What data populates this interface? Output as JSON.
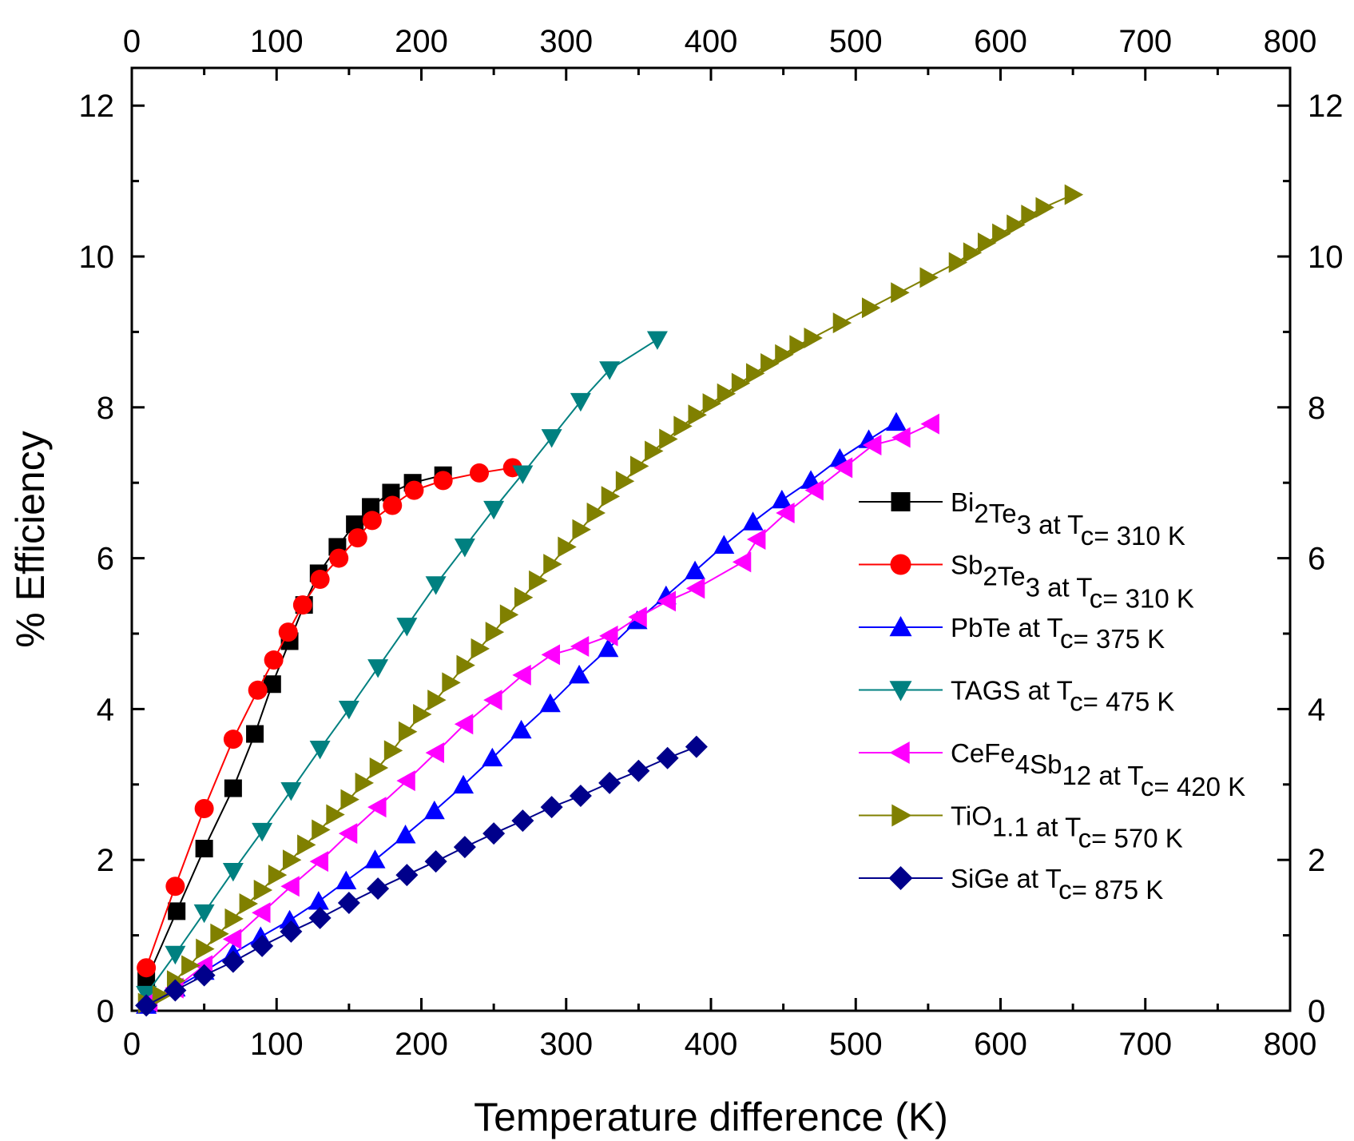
{
  "chart_data": {
    "type": "line",
    "title": "",
    "xlabel": "Temperature difference (K)",
    "ylabel": "% Efficiency",
    "xlim": [
      0,
      800
    ],
    "ylim": [
      0,
      12.5
    ],
    "x_ticks": [
      "0",
      "100",
      "200",
      "300",
      "400",
      "500",
      "600",
      "700",
      "800"
    ],
    "y_ticks": [
      "0",
      "2",
      "4",
      "6",
      "8",
      "10",
      "12"
    ],
    "grid": false,
    "legend_position": "right",
    "series": [
      {
        "name": "Bi2Te3 at Tc= 310 K",
        "legend": {
          "base": "Bi",
          "parts": [
            [
              "sub",
              "2"
            ],
            [
              "base",
              "Te"
            ],
            [
              "sub",
              "3"
            ],
            [
              "base",
              " at T"
            ],
            [
              "sub",
              "c"
            ],
            [
              "base",
              "= 310 K"
            ]
          ]
        },
        "color": "#000000",
        "marker": "square",
        "x": [
          10,
          31,
          50,
          70,
          85,
          97,
          109,
          119,
          129,
          142,
          154,
          165,
          179,
          194,
          215
        ],
        "y": [
          0.4,
          1.32,
          2.15,
          2.95,
          3.67,
          4.33,
          4.9,
          5.38,
          5.8,
          6.15,
          6.45,
          6.68,
          6.87,
          7.0,
          7.1
        ]
      },
      {
        "name": "Sb2Te3 at Tc= 310 K",
        "legend": {
          "base": "Sb",
          "parts": [
            [
              "sub",
              "2"
            ],
            [
              "base",
              "Te"
            ],
            [
              "sub",
              "3"
            ],
            [
              "base",
              " at T"
            ],
            [
              "sub",
              "c"
            ],
            [
              "base",
              "= 310 K"
            ]
          ]
        },
        "color": "#ff0000",
        "marker": "circle",
        "x": [
          10,
          30,
          50,
          70,
          87,
          98,
          108,
          118,
          130,
          143,
          156,
          166,
          180,
          195,
          215,
          240,
          263
        ],
        "y": [
          0.57,
          1.65,
          2.68,
          3.6,
          4.25,
          4.65,
          5.02,
          5.38,
          5.72,
          6.0,
          6.27,
          6.5,
          6.7,
          6.9,
          7.03,
          7.13,
          7.2
        ]
      },
      {
        "name": "PbTe at Tc= 375 K",
        "legend": {
          "base": "PbTe at T",
          "parts": [
            [
              "sub",
              "c"
            ],
            [
              "base",
              "= 375 K"
            ]
          ]
        },
        "color": "#0000ff",
        "marker": "triangle-up",
        "x": [
          10,
          30,
          50,
          70,
          89,
          109,
          129,
          148,
          168,
          189,
          209,
          229,
          249,
          269,
          289,
          309,
          329,
          349,
          369,
          389,
          409,
          429,
          449,
          469,
          489,
          509,
          528
        ],
        "y": [
          0.07,
          0.3,
          0.52,
          0.76,
          0.98,
          1.2,
          1.45,
          1.72,
          2.0,
          2.33,
          2.65,
          2.99,
          3.35,
          3.72,
          4.07,
          4.45,
          4.8,
          5.17,
          5.5,
          5.83,
          6.17,
          6.48,
          6.77,
          7.03,
          7.32,
          7.57,
          7.8
        ]
      },
      {
        "name": "TAGS at Tc= 475 K",
        "legend": {
          "base": "TAGS at T",
          "parts": [
            [
              "sub",
              "c"
            ],
            [
              "base",
              "= 475 K"
            ]
          ]
        },
        "color": "#008080",
        "marker": "triangle-down",
        "x": [
          10,
          30,
          50,
          70,
          90,
          110,
          130,
          150,
          170,
          190,
          210,
          230,
          250,
          270,
          290,
          310,
          330,
          363
        ],
        "y": [
          0.22,
          0.75,
          1.3,
          1.85,
          2.38,
          2.92,
          3.47,
          4.0,
          4.55,
          5.1,
          5.65,
          6.15,
          6.65,
          7.12,
          7.6,
          8.08,
          8.5,
          8.9
        ]
      },
      {
        "name": "CeFe4Sb12 at Tc= 420 K",
        "legend": {
          "base": "CeFe",
          "parts": [
            [
              "sub",
              "4"
            ],
            [
              "base",
              "Sb"
            ],
            [
              "sub",
              "12"
            ],
            [
              "base",
              " at T"
            ],
            [
              "sub",
              "c"
            ],
            [
              "base",
              "= 420 K"
            ]
          ]
        },
        "color": "#ff00ff",
        "marker": "triangle-left",
        "x": [
          12,
          30,
          50,
          70,
          90,
          110,
          130,
          150,
          170,
          190,
          210,
          230,
          250,
          270,
          290,
          310,
          330,
          350,
          370,
          390,
          422,
          432,
          452,
          472,
          492,
          512,
          532,
          552
        ],
        "y": [
          0.12,
          0.3,
          0.6,
          0.95,
          1.3,
          1.65,
          1.98,
          2.35,
          2.7,
          3.05,
          3.42,
          3.8,
          4.12,
          4.45,
          4.72,
          4.83,
          4.97,
          5.22,
          5.43,
          5.6,
          5.95,
          6.25,
          6.6,
          6.9,
          7.2,
          7.5,
          7.6,
          7.78
        ]
      },
      {
        "name": "TiO1.1 at Tc= 570 K",
        "legend": {
          "base": "TiO",
          "parts": [
            [
              "sub",
              "1.1"
            ],
            [
              "base",
              " at T"
            ],
            [
              "sub",
              "c"
            ],
            [
              "base",
              "= 570 K"
            ]
          ]
        },
        "color": "#808000",
        "marker": "triangle-right",
        "x": [
          10,
          20,
          30,
          40,
          50,
          60,
          70,
          80,
          90,
          100,
          110,
          120,
          130,
          140,
          150,
          160,
          170,
          180,
          190,
          200,
          210,
          220,
          230,
          240,
          250,
          260,
          270,
          280,
          290,
          300,
          310,
          320,
          330,
          340,
          350,
          360,
          370,
          380,
          390,
          400,
          410,
          420,
          430,
          440,
          450,
          460,
          470,
          490,
          510,
          530,
          550,
          570,
          580,
          590,
          600,
          610,
          620,
          630,
          650
        ],
        "y": [
          0.1,
          0.2,
          0.4,
          0.6,
          0.82,
          1.02,
          1.22,
          1.42,
          1.6,
          1.8,
          2.0,
          2.2,
          2.4,
          2.6,
          2.8,
          3.02,
          3.22,
          3.45,
          3.7,
          3.93,
          4.12,
          4.35,
          4.58,
          4.8,
          5.02,
          5.25,
          5.48,
          5.7,
          5.92,
          6.15,
          6.38,
          6.6,
          6.82,
          7.02,
          7.22,
          7.42,
          7.58,
          7.75,
          7.9,
          8.05,
          8.18,
          8.32,
          8.45,
          8.58,
          8.7,
          8.82,
          8.92,
          9.12,
          9.32,
          9.52,
          9.72,
          9.92,
          10.05,
          10.18,
          10.3,
          10.42,
          10.55,
          10.65,
          10.82
        ]
      },
      {
        "name": "SiGe at Tc= 875 K",
        "legend": {
          "base": "SiGe at T",
          "parts": [
            [
              "sub",
              "c"
            ],
            [
              "base",
              "= 875 K"
            ]
          ]
        },
        "color": "#00008b",
        "marker": "diamond",
        "x": [
          10,
          30,
          50,
          70,
          90,
          110,
          130,
          150,
          170,
          190,
          210,
          230,
          250,
          270,
          290,
          310,
          330,
          350,
          370,
          390
        ],
        "y": [
          0.07,
          0.27,
          0.47,
          0.65,
          0.86,
          1.05,
          1.23,
          1.43,
          1.62,
          1.8,
          1.98,
          2.17,
          2.35,
          2.52,
          2.7,
          2.85,
          3.02,
          3.18,
          3.35,
          3.5
        ]
      }
    ]
  }
}
